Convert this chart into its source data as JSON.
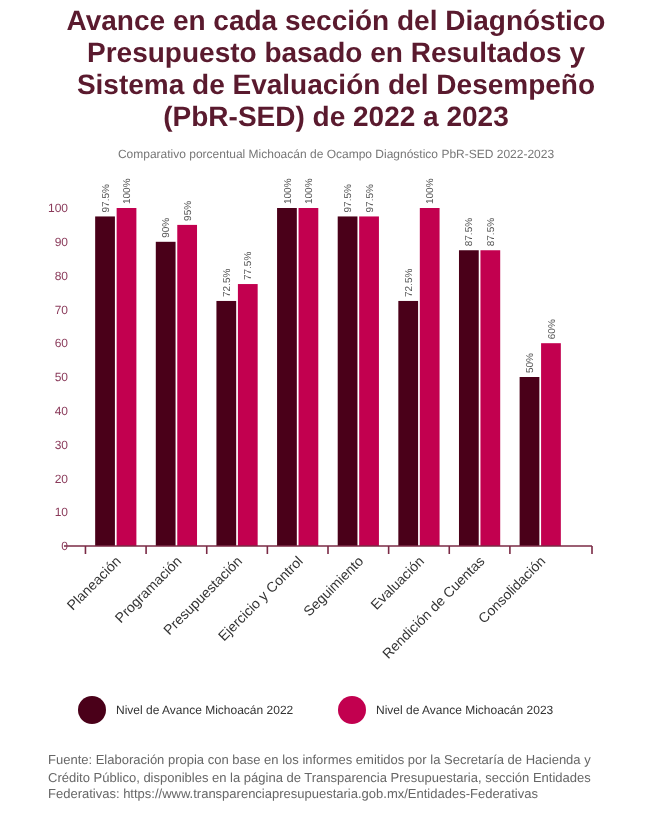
{
  "chart_data": {
    "type": "bar",
    "title": "Avance en cada sección del Diagnóstico Presupuesto basado en Resultados y Sistema de Evaluación del Desempeño (PbR-SED)  de 2022 a 2023",
    "subtitle": "Comparativo porcentual Michoacán de Ocampo Diagnóstico PbR-SED 2022-2023",
    "categories": [
      "Planeación",
      "Programación",
      "Presupuestación",
      "Ejercicio y Control",
      "Seguimiento",
      "Evaluación",
      "Rendición de Cuentas",
      "Consolidación"
    ],
    "series": [
      {
        "name": "Nivel de Avance Michoacán 2022",
        "color": "#4a0019",
        "values": [
          97.5,
          90,
          72.5,
          100,
          97.5,
          72.5,
          87.5,
          50
        ],
        "value_labels": [
          "97.5%",
          "90%",
          "72.5%",
          "100%",
          "97.5%",
          "72.5%",
          "87.5%",
          "50%"
        ]
      },
      {
        "name": "Nivel de Avance Michoacán 2023",
        "color": "#c2004f",
        "values": [
          100,
          95,
          77.5,
          100,
          97.5,
          100,
          87.5,
          60
        ],
        "value_labels": [
          "100%",
          "95%",
          "77.5%",
          "100%",
          "97.5%",
          "100%",
          "87.5%",
          "60%"
        ]
      }
    ],
    "ylim": [
      0,
      100
    ],
    "yticks": [
      0,
      10,
      20,
      30,
      40,
      50,
      60,
      70,
      80,
      90,
      100
    ],
    "grid": false,
    "legend": "bottom",
    "annotations": [
      "Fuente: Elaboración propia con base en los informes emitidos por la Secretaría de Hacienda y Crédito Público, disponibles en la página de Transparencia Presupuestaria, sección Entidades Federativas: https://www.transparenciapresupuestaria.gob.mx/Entidades-Federativas"
    ]
  }
}
